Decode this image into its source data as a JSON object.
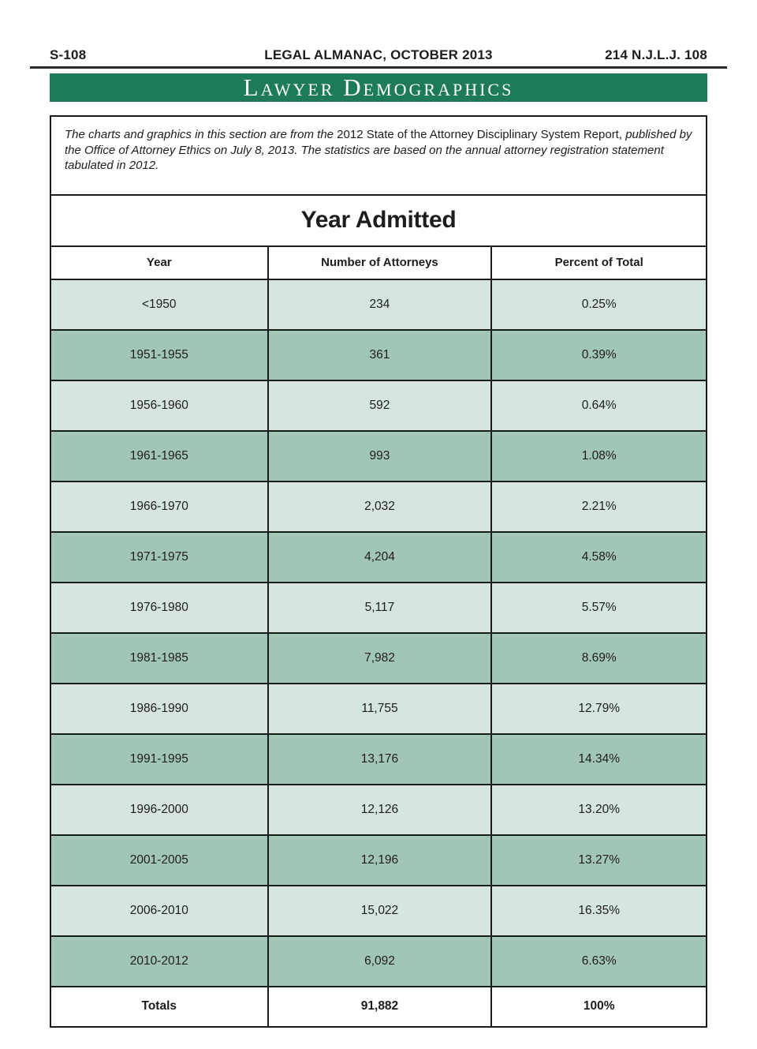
{
  "header": {
    "left": "S-108",
    "center": "LEGAL ALMANAC, OCTOBER 2013",
    "right": "214 N.J.L.J. 108"
  },
  "banner": {
    "title": "Lawyer Demographics"
  },
  "note": {
    "lead_italic": "The charts and graphics in this section are from the ",
    "report_title": "2012 State of the Attorney Disciplinary System Report,",
    "tail_italic": " published by the Office of Attorney Ethics on July 8, 2013. The statistics are based on the annual attorney registration statement tabulated in 2012."
  },
  "chart_data": {
    "type": "table",
    "title": "Year Admitted",
    "columns": [
      "Year",
      "Number of Attorneys",
      "Percent of Total"
    ],
    "rows": [
      [
        "<1950",
        "234",
        "0.25%"
      ],
      [
        "1951-1955",
        "361",
        "0.39%"
      ],
      [
        "1956-1960",
        "592",
        "0.64%"
      ],
      [
        "1961-1965",
        "993",
        "1.08%"
      ],
      [
        "1966-1970",
        "2,032",
        "2.21%"
      ],
      [
        "1971-1975",
        "4,204",
        "4.58%"
      ],
      [
        "1976-1980",
        "5,117",
        "5.57%"
      ],
      [
        "1981-1985",
        "7,982",
        "8.69%"
      ],
      [
        "1986-1990",
        "11,755",
        "12.79%"
      ],
      [
        "1991-1995",
        "13,176",
        "14.34%"
      ],
      [
        "1996-2000",
        "12,126",
        "13.20%"
      ],
      [
        "2001-2005",
        "12,196",
        "13.27%"
      ],
      [
        "2006-2010",
        "15,022",
        "16.35%"
      ],
      [
        "2010-2012",
        "6,092",
        "6.63%"
      ]
    ],
    "totals_row": [
      "Totals",
      "91,882",
      "100%"
    ]
  },
  "colors": {
    "banner_green": "#1e7b57",
    "row_light": "#d6e5de",
    "row_dark": "#a1c6b6",
    "border": "#1b1b1b"
  }
}
